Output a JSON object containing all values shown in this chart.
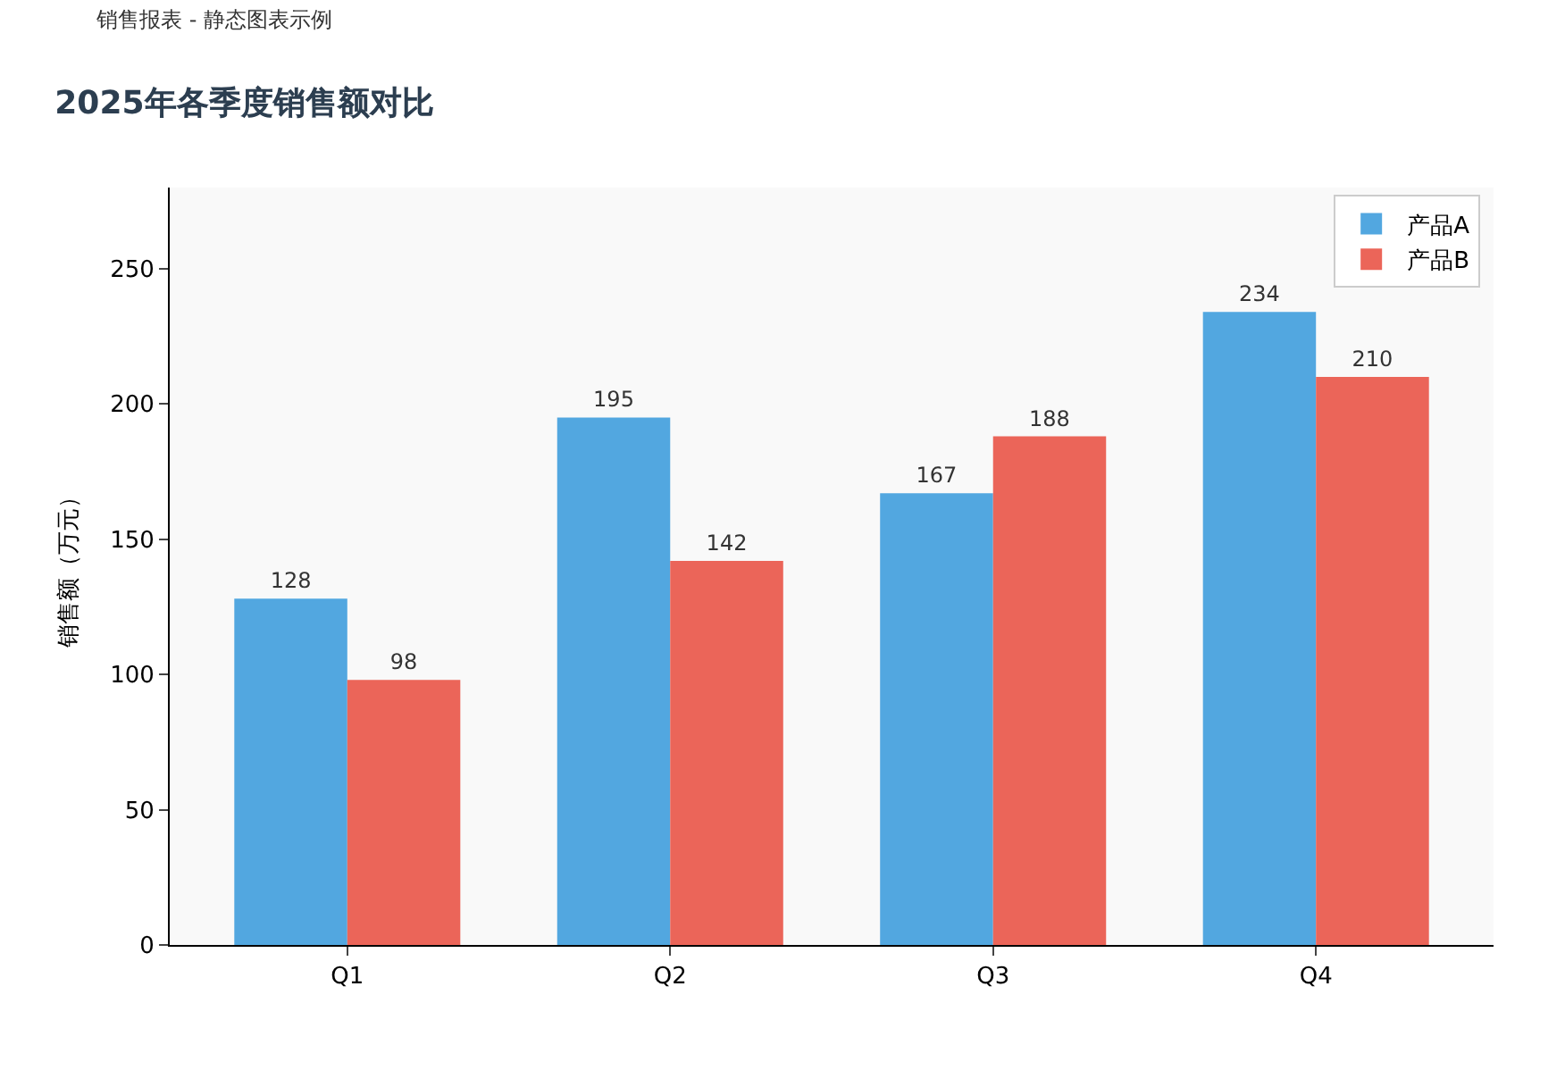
{
  "chart_data": {
    "type": "bar",
    "title": "2025年各季度销售额对比",
    "subtitle": "销售报表 - 静态图表示例",
    "ylabel": "销售额（万元）",
    "categories": [
      "Q1",
      "Q2",
      "Q3",
      "Q4"
    ],
    "series": [
      {
        "name": "产品A",
        "color": "#52a7e0",
        "values": [
          128,
          195,
          167,
          234
        ]
      },
      {
        "name": "产品B",
        "color": "#eb6559",
        "values": [
          98,
          142,
          188,
          210
        ]
      }
    ],
    "ylim": [
      0,
      280
    ],
    "yticks": [
      0,
      50,
      100,
      150,
      200,
      250
    ],
    "grid": false,
    "legend": "top right",
    "data_labels": true
  }
}
